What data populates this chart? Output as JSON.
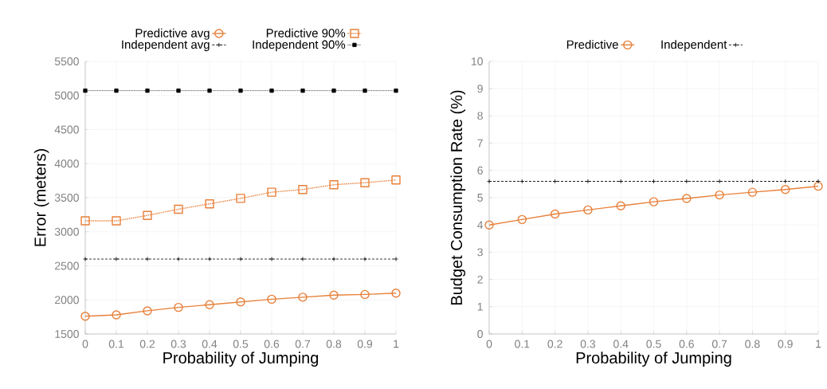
{
  "chart_data": [
    {
      "type": "line",
      "xlabel": "Probability of Jumping",
      "ylabel": "Error (meters)",
      "x": [
        0,
        0.1,
        0.2,
        0.3,
        0.4,
        0.5,
        0.6,
        0.7,
        0.8,
        0.9,
        1
      ],
      "series": [
        {
          "name": "Predictive avg",
          "color": "#e8803a",
          "marker": "circle",
          "line_style": "solid",
          "values": [
            1760,
            1780,
            1840,
            1890,
            1930,
            1970,
            2010,
            2040,
            2070,
            2080,
            2100
          ]
        },
        {
          "name": "Predictive 90%",
          "color": "#e8803a",
          "marker": "square",
          "line_style": "dotted",
          "values": [
            3160,
            3160,
            3240,
            3330,
            3410,
            3490,
            3580,
            3620,
            3690,
            3720,
            3760
          ]
        },
        {
          "name": "Independent avg",
          "color": "#000000",
          "marker": "cross",
          "line_style": "dashed",
          "values": [
            2600,
            2600,
            2600,
            2600,
            2600,
            2600,
            2600,
            2600,
            2600,
            2600,
            2600
          ]
        },
        {
          "name": "Independent 90%",
          "color": "#000000",
          "marker": "square",
          "line_style": "dotted",
          "values": [
            5070,
            5070,
            5070,
            5070,
            5070,
            5070,
            5070,
            5070,
            5070,
            5070,
            5070
          ]
        }
      ],
      "xlim": [
        0,
        1
      ],
      "xticks": [
        0,
        0.1,
        0.2,
        0.3,
        0.4,
        0.5,
        0.6,
        0.7,
        0.8,
        0.9,
        1
      ],
      "ylim": [
        1500,
        5500
      ],
      "yticks": [
        1500,
        2000,
        2500,
        3000,
        3500,
        4000,
        4500,
        5000,
        5500
      ],
      "grid": true,
      "legend": "top"
    },
    {
      "type": "line",
      "xlabel": "Probability of Jumping",
      "ylabel": "Budget Consumption Rate (%)",
      "x": [
        0,
        0.1,
        0.2,
        0.3,
        0.4,
        0.5,
        0.6,
        0.7,
        0.8,
        0.9,
        1
      ],
      "series": [
        {
          "name": "Predictive",
          "color": "#e8803a",
          "marker": "circle",
          "line_style": "solid",
          "values": [
            4.0,
            4.2,
            4.4,
            4.55,
            4.7,
            4.85,
            4.97,
            5.1,
            5.2,
            5.3,
            5.42
          ]
        },
        {
          "name": "Independent",
          "color": "#000000",
          "marker": "cross",
          "line_style": "dashed",
          "values": [
            5.6,
            5.6,
            5.6,
            5.6,
            5.6,
            5.6,
            5.6,
            5.6,
            5.6,
            5.6,
            5.6
          ]
        }
      ],
      "xlim": [
        0,
        1
      ],
      "xticks": [
        0,
        0.1,
        0.2,
        0.3,
        0.4,
        0.5,
        0.6,
        0.7,
        0.8,
        0.9,
        1
      ],
      "ylim": [
        0,
        10
      ],
      "yticks": [
        0,
        1,
        2,
        3,
        4,
        5,
        6,
        7,
        8,
        9,
        10
      ],
      "grid": true,
      "legend": "top"
    }
  ]
}
